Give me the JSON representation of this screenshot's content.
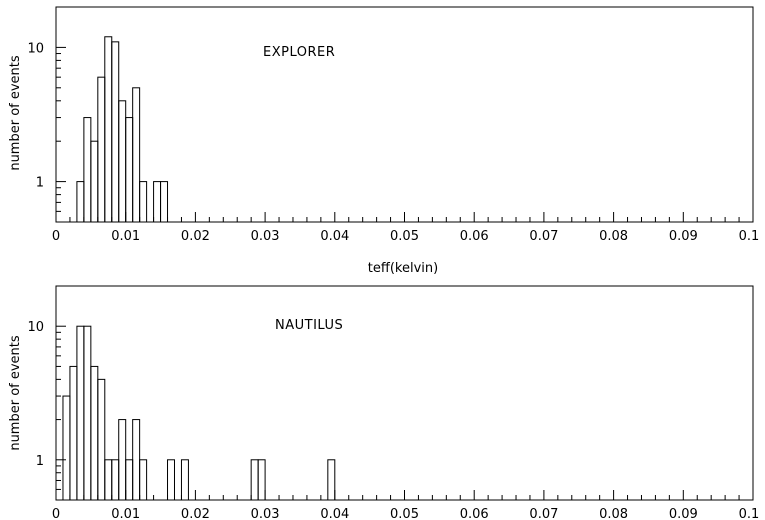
{
  "chart_data": [
    {
      "type": "bar",
      "title": "",
      "annotation": "EXPLORER",
      "xlabel": "teff(kelvin)",
      "ylabel": "number of events",
      "y_scale": "log",
      "xlim": [
        0,
        0.1
      ],
      "ylim": [
        0.5,
        20
      ],
      "x_ticks": [
        "0",
        "0.01",
        "0.02",
        "0.03",
        "0.04",
        "0.05",
        "0.06",
        "0.07",
        "0.08",
        "0.09",
        "0.1"
      ],
      "y_ticks": [
        "1",
        "10"
      ],
      "bin_width": 0.001,
      "bin_starts": [
        0.003,
        0.004,
        0.005,
        0.006,
        0.007,
        0.008,
        0.009,
        0.01,
        0.011,
        0.012,
        0.014,
        0.015
      ],
      "values": [
        1,
        3,
        2,
        6,
        12,
        11,
        4,
        3,
        5,
        1,
        1,
        1
      ],
      "grid": false
    },
    {
      "type": "bar",
      "title": "",
      "annotation": "NAUTILUS",
      "xlabel": "",
      "ylabel": "number of events",
      "y_scale": "log",
      "xlim": [
        0,
        0.1
      ],
      "ylim": [
        0.5,
        20
      ],
      "x_ticks": [
        "0",
        "0.01",
        "0.02",
        "0.03",
        "0.04",
        "0.05",
        "0.06",
        "0.07",
        "0.08",
        "0.09",
        "0.1"
      ],
      "y_ticks": [
        "1",
        "10"
      ],
      "bin_width": 0.001,
      "bin_starts": [
        0.001,
        0.002,
        0.003,
        0.004,
        0.005,
        0.006,
        0.007,
        0.008,
        0.009,
        0.01,
        0.011,
        0.012,
        0.016,
        0.018,
        0.028,
        0.029,
        0.039
      ],
      "values": [
        3,
        5,
        10,
        10,
        5,
        4,
        1,
        1,
        2,
        1,
        2,
        1,
        1,
        1,
        1,
        1,
        1
      ],
      "grid": false
    }
  ]
}
